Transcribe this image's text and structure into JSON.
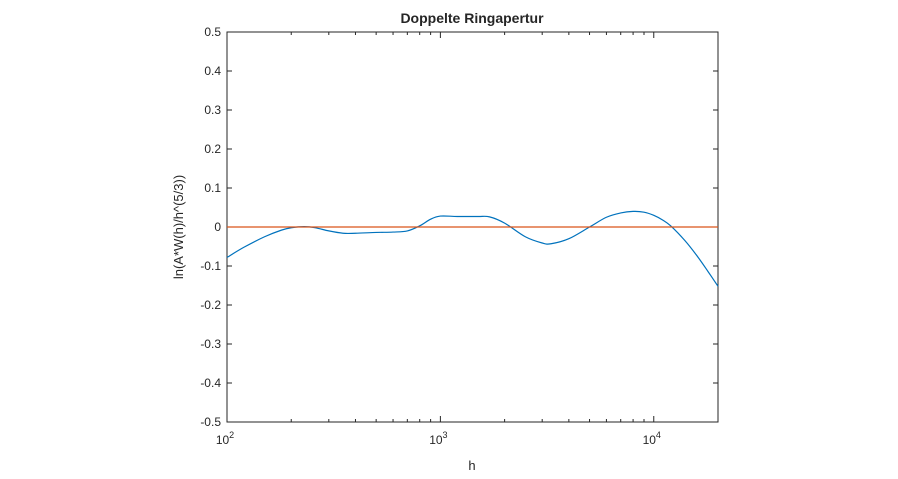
{
  "chart_data": {
    "type": "line",
    "title": "Doppelte Ringapertur",
    "xlabel": "h",
    "ylabel": "ln(A*W(h)/h^(5/3))",
    "xscale": "log",
    "xlim": [
      100,
      20000
    ],
    "ylim": [
      -0.5,
      0.5
    ],
    "grid": false,
    "legend": "none",
    "x_ticks": [
      {
        "base": "10",
        "exp": "2",
        "value": 100
      },
      {
        "base": "10",
        "exp": "3",
        "value": 1000
      },
      {
        "base": "10",
        "exp": "4",
        "value": 10000
      }
    ],
    "y_ticks": [
      "-0.5",
      "-0.4",
      "-0.3",
      "-0.2",
      "-0.1",
      "0",
      "0.1",
      "0.2",
      "0.3",
      "0.4",
      "0.5"
    ],
    "series": [
      {
        "color": "#0072BD",
        "x": [
          100,
          120,
          150,
          180,
          200,
          230,
          260,
          300,
          350,
          400,
          500,
          600,
          700,
          800,
          900,
          1000,
          1200,
          1500,
          1700,
          2000,
          2500,
          3000,
          3300,
          4000,
          5000,
          6000,
          7000,
          8000,
          9000,
          10000,
          11000,
          12000,
          14000,
          16000,
          18000,
          20000
        ],
        "y": [
          -0.078,
          -0.052,
          -0.025,
          -0.008,
          -0.002,
          0.001,
          -0.002,
          -0.01,
          -0.016,
          -0.016,
          -0.014,
          -0.013,
          -0.01,
          0.003,
          0.02,
          0.028,
          0.027,
          0.027,
          0.026,
          0.01,
          -0.025,
          -0.041,
          -0.043,
          -0.03,
          0.0,
          0.025,
          0.036,
          0.04,
          0.038,
          0.03,
          0.018,
          0.003,
          -0.035,
          -0.075,
          -0.115,
          -0.152
        ]
      },
      {
        "color": "#D95319",
        "x": [
          100,
          20000
        ],
        "y": [
          0,
          0
        ]
      }
    ]
  }
}
